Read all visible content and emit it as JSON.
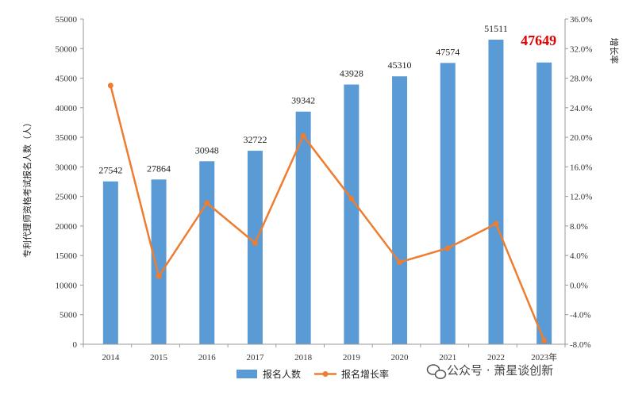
{
  "chart_data": {
    "type": "bar",
    "categories": [
      "2014",
      "2015",
      "2016",
      "2017",
      "2018",
      "2019",
      "2020",
      "2021",
      "2022",
      "2023年"
    ],
    "bar_series": {
      "name": "报名人数",
      "values": [
        27542,
        27864,
        30948,
        32722,
        39342,
        43928,
        45310,
        47574,
        51511,
        47649
      ],
      "data_labels": [
        "27542",
        "27864",
        "30948",
        "32722",
        "39342",
        "43928",
        "45310",
        "47574",
        "51511",
        "47649"
      ],
      "color": "#5b9bd5"
    },
    "line_series": {
      "name": "报名增长率",
      "values": [
        27.0,
        1.2,
        11.1,
        5.7,
        20.2,
        11.7,
        3.1,
        5.0,
        8.3,
        -7.5
      ],
      "color": "#ed7d31"
    },
    "left_axis": {
      "label": "专利代理师资格考试报名人数（人）",
      "ylim": [
        0,
        55000
      ],
      "ticks": [
        "0",
        "5000",
        "10000",
        "15000",
        "20000",
        "25000",
        "30000",
        "35000",
        "40000",
        "45000",
        "50000",
        "55000"
      ]
    },
    "right_axis": {
      "label": "增长率",
      "ylim": [
        -8,
        36
      ],
      "ticks": [
        "-8.0%",
        "-4.0%",
        "0.0%",
        "4.0%",
        "8.0%",
        "12.0%",
        "16.0%",
        "20.0%",
        "24.0%",
        "28.0%",
        "32.0%",
        "36.0%"
      ]
    },
    "highlight_color": "#e00000",
    "grid": false,
    "legend_position": "bottom"
  },
  "legend": {
    "bar_label": "报名人数",
    "line_label": "报名增长率"
  },
  "watermark": {
    "text": "公众号 · 萧星谈创新"
  }
}
